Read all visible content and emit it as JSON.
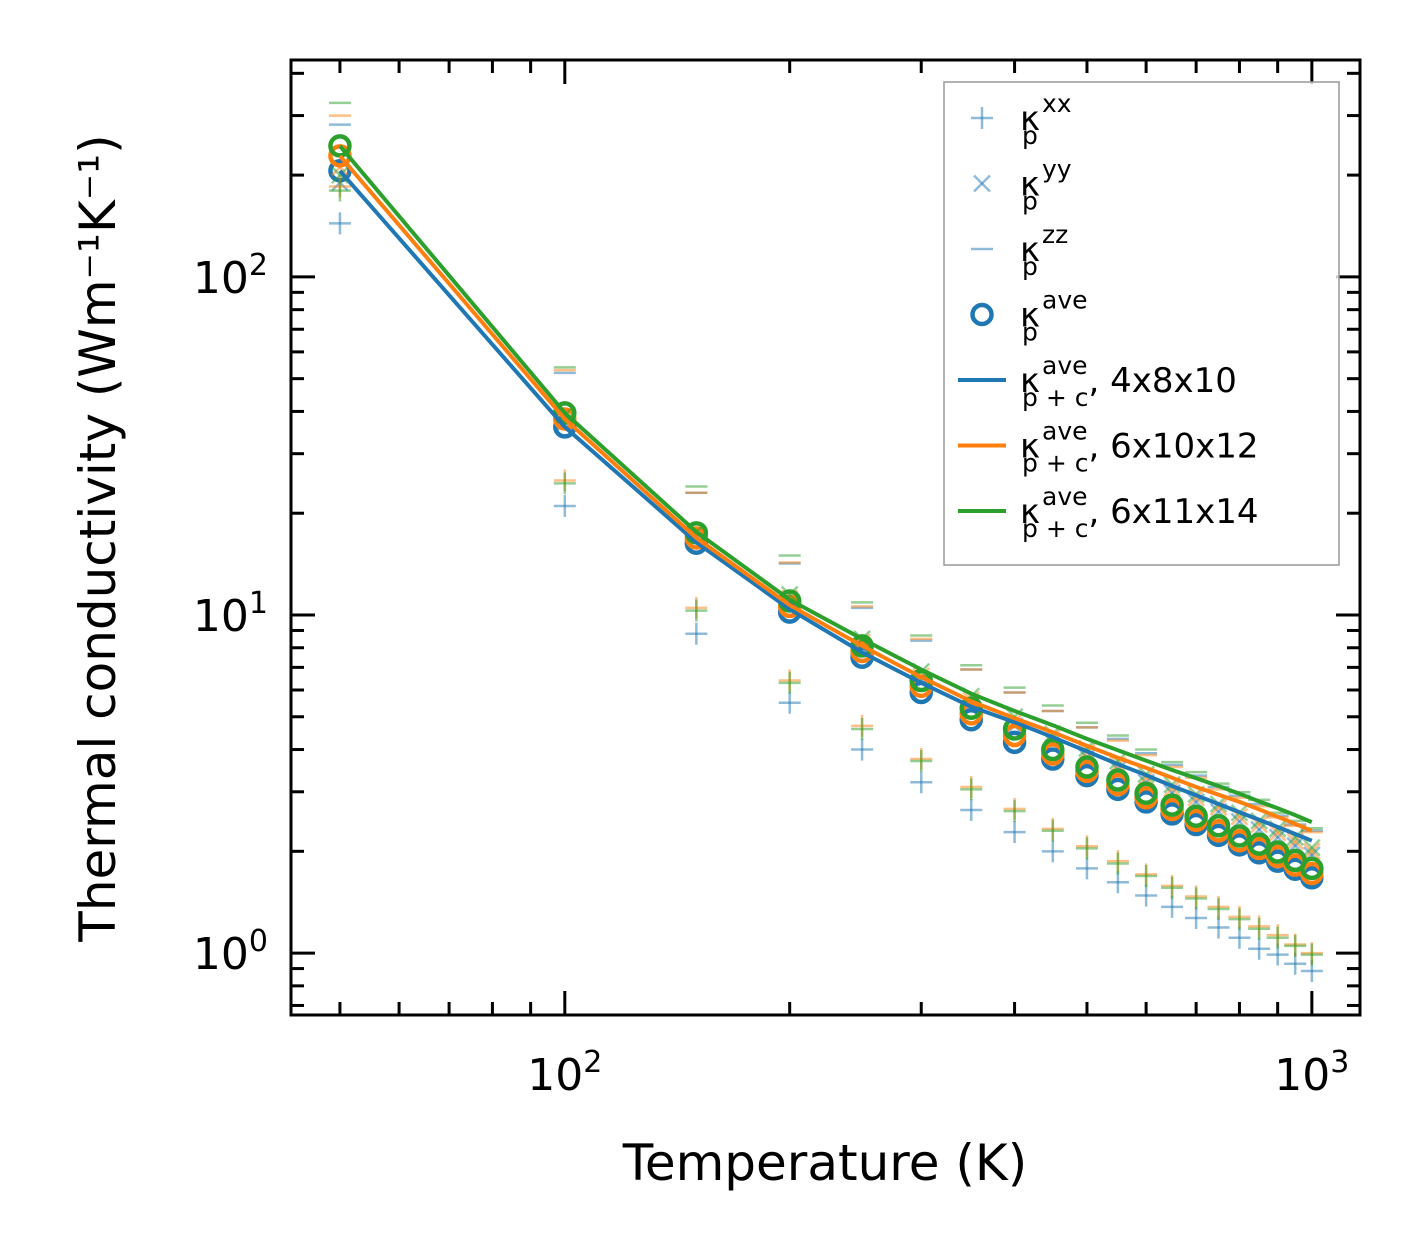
{
  "chart_data": {
    "type": "scatter",
    "title": "",
    "xlabel": "Temperature (K)",
    "ylabel": "Thermal conductivity (Wm⁻¹K⁻¹)",
    "xscale": "log",
    "yscale": "log",
    "xlim": [
      43,
      1160
    ],
    "ylim": [
      0.656,
      438
    ],
    "grid": false,
    "legend_placement": "top-right",
    "x_ticks": [
      {
        "value": 100,
        "base": "10",
        "exp": "2"
      },
      {
        "value": 1000,
        "base": "10",
        "exp": "3"
      }
    ],
    "y_ticks": [
      {
        "value": 1,
        "base": "10",
        "exp": "0"
      },
      {
        "value": 10,
        "base": "10",
        "exp": "1"
      },
      {
        "value": 100,
        "base": "10",
        "exp": "2"
      }
    ],
    "colors": {
      "blue": "#1f77b4",
      "orange": "#ff7f0e",
      "green": "#2ca02c"
    },
    "x": [
      50,
      100,
      150,
      200,
      250,
      300,
      350,
      400,
      450,
      500,
      550,
      600,
      650,
      700,
      750,
      800,
      850,
      900,
      950,
      1000
    ],
    "series": [
      {
        "name": "kappa_p_xx 4x8x10",
        "color": "#1f77b4",
        "marker": "plus",
        "values": [
          144,
          21,
          8.8,
          5.5,
          4.0,
          3.2,
          2.65,
          2.28,
          2.0,
          1.78,
          1.62,
          1.48,
          1.37,
          1.27,
          1.19,
          1.11,
          1.03,
          0.99,
          0.93,
          0.885
        ]
      },
      {
        "name": "kappa_p_yy 4x8x10",
        "color": "#1f77b4",
        "marker": "x",
        "values": [
          190,
          37,
          16.8,
          10.8,
          8.0,
          6.4,
          5.4,
          4.7,
          4.2,
          3.8,
          3.5,
          3.2,
          2.98,
          2.8,
          2.62,
          2.45,
          2.32,
          2.2,
          2.08,
          1.95
        ]
      },
      {
        "name": "kappa_p_zz 4x8x10",
        "color": "#1f77b4",
        "marker": "hline",
        "values": [
          282,
          52,
          23,
          14.2,
          10.5,
          8.4,
          6.9,
          5.9,
          5.2,
          4.65,
          4.3,
          3.9,
          3.6,
          3.35,
          3.1,
          2.92,
          2.76,
          2.55,
          2.4,
          2.3
        ]
      },
      {
        "name": "kappa_p_ave 4x8x10",
        "color": "#1f77b4",
        "marker": "circle",
        "values": [
          206,
          36,
          16.3,
          10.2,
          7.5,
          5.9,
          4.9,
          4.2,
          3.75,
          3.35,
          3.05,
          2.8,
          2.58,
          2.4,
          2.23,
          2.09,
          1.98,
          1.87,
          1.77,
          1.67
        ]
      },
      {
        "name": "kappa_p_xx 6x10x12",
        "color": "#ff7f0e",
        "marker": "plus",
        "values": [
          185,
          25,
          10.5,
          6.4,
          4.7,
          3.75,
          3.1,
          2.67,
          2.33,
          2.07,
          1.87,
          1.71,
          1.58,
          1.47,
          1.37,
          1.28,
          1.2,
          1.13,
          1.06,
          1.0
        ]
      },
      {
        "name": "kappa_p_yy 6x10x12",
        "color": "#ff7f0e",
        "marker": "x",
        "values": [
          211,
          38.5,
          17.3,
          11.2,
          8.3,
          6.6,
          5.6,
          4.85,
          4.35,
          3.93,
          3.6,
          3.3,
          3.07,
          2.88,
          2.7,
          2.53,
          2.4,
          2.27,
          2.14,
          2.0
        ]
      },
      {
        "name": "kappa_p_zz 6x10x12",
        "color": "#ff7f0e",
        "marker": "hline",
        "values": [
          300,
          53,
          23,
          14.3,
          10.6,
          8.5,
          6.9,
          5.9,
          5.2,
          4.65,
          4.25,
          3.85,
          3.55,
          3.3,
          3.05,
          2.88,
          2.72,
          2.52,
          2.38,
          2.28
        ]
      },
      {
        "name": "kappa_p_ave 6x10x12",
        "color": "#ff7f0e",
        "marker": "circle",
        "values": [
          228,
          38,
          16.9,
          10.6,
          7.8,
          6.15,
          5.1,
          4.4,
          3.88,
          3.45,
          3.15,
          2.88,
          2.66,
          2.47,
          2.3,
          2.15,
          2.04,
          1.93,
          1.82,
          1.72
        ]
      },
      {
        "name": "kappa_p_xx 6x11x14",
        "color": "#2ca02c",
        "marker": "plus",
        "values": [
          180,
          24.5,
          10.3,
          6.3,
          4.6,
          3.7,
          3.05,
          2.63,
          2.3,
          2.04,
          1.84,
          1.69,
          1.56,
          1.45,
          1.35,
          1.26,
          1.18,
          1.11,
          1.05,
          0.99
        ]
      },
      {
        "name": "kappa_p_yy 6x11x14",
        "color": "#2ca02c",
        "marker": "x",
        "values": [
          200,
          39,
          17.6,
          11.5,
          8.5,
          6.8,
          5.75,
          5.0,
          4.45,
          4.03,
          3.7,
          3.38,
          3.15,
          2.95,
          2.76,
          2.6,
          2.46,
          2.33,
          2.2,
          2.05
        ]
      },
      {
        "name": "kappa_p_zz 6x11x14",
        "color": "#2ca02c",
        "marker": "hline",
        "values": [
          327,
          54,
          24,
          15,
          10.9,
          8.7,
          7.1,
          6.1,
          5.4,
          4.8,
          4.4,
          4.0,
          3.67,
          3.43,
          3.17,
          2.99,
          2.84,
          2.6,
          2.46,
          2.34
        ]
      },
      {
        "name": "kappa_p_ave 6x11x14",
        "color": "#2ca02c",
        "marker": "circle",
        "values": [
          244,
          39.6,
          17.5,
          11.0,
          8.1,
          6.4,
          5.3,
          4.6,
          4.0,
          3.55,
          3.25,
          2.97,
          2.74,
          2.54,
          2.38,
          2.22,
          2.1,
          1.99,
          1.88,
          1.78
        ]
      },
      {
        "name": "kappa_p+c_ave 4x8x10",
        "color": "#1f77b4",
        "marker": "line",
        "values": [
          206,
          36,
          16.4,
          10.4,
          7.75,
          6.3,
          5.35,
          4.82,
          4.35,
          3.95,
          3.62,
          3.36,
          3.12,
          2.93,
          2.76,
          2.61,
          2.48,
          2.36,
          2.25,
          2.15
        ]
      },
      {
        "name": "kappa_p+c_ave 6x10x12",
        "color": "#ff7f0e",
        "marker": "line",
        "values": [
          228,
          38,
          16.9,
          10.7,
          8.1,
          6.55,
          5.55,
          4.95,
          4.5,
          4.1,
          3.78,
          3.53,
          3.3,
          3.1,
          2.94,
          2.8,
          2.66,
          2.53,
          2.41,
          2.3
        ]
      },
      {
        "name": "kappa_p+c_ave 6x11x14",
        "color": "#2ca02c",
        "marker": "line",
        "values": [
          244,
          39.6,
          17.6,
          11.1,
          8.5,
          6.9,
          5.85,
          5.2,
          4.72,
          4.3,
          3.98,
          3.71,
          3.48,
          3.29,
          3.12,
          2.96,
          2.81,
          2.68,
          2.56,
          2.44
        ]
      }
    ],
    "legend": [
      {
        "marker": "plus",
        "color": "#1f77b4",
        "base": "κ",
        "sub": "p",
        "sup": "xx",
        "suffix": ""
      },
      {
        "marker": "x",
        "color": "#1f77b4",
        "base": "κ",
        "sub": "p",
        "sup": "yy",
        "suffix": ""
      },
      {
        "marker": "hline",
        "color": "#1f77b4",
        "base": "κ",
        "sub": "p",
        "sup": "zz",
        "suffix": ""
      },
      {
        "marker": "circle",
        "color": "#1f77b4",
        "base": "κ",
        "sub": "p",
        "sup": "ave",
        "suffix": ""
      },
      {
        "marker": "line",
        "color": "#1f77b4",
        "base": "κ",
        "sub": "p + c",
        "sup": "ave",
        "suffix": ", 4x8x10"
      },
      {
        "marker": "line",
        "color": "#ff7f0e",
        "base": "κ",
        "sub": "p + c",
        "sup": "ave",
        "suffix": ", 6x10x12"
      },
      {
        "marker": "line",
        "color": "#2ca02c",
        "base": "κ",
        "sub": "p + c",
        "sup": "ave",
        "suffix": ", 6x11x14"
      }
    ]
  }
}
